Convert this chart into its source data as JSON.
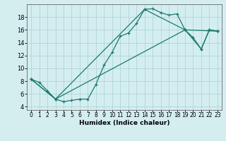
{
  "xlabel": "Humidex (Indice chaleur)",
  "bg_color": "#d4eef0",
  "line_color": "#1a7a6e",
  "grid_color": "#afd4d8",
  "xlim": [
    -0.5,
    23.5
  ],
  "ylim": [
    3.5,
    20.0
  ],
  "yticks": [
    4,
    6,
    8,
    10,
    12,
    14,
    16,
    18
  ],
  "xticks": [
    0,
    1,
    2,
    3,
    4,
    5,
    6,
    7,
    8,
    9,
    10,
    11,
    12,
    13,
    14,
    15,
    16,
    17,
    18,
    19,
    20,
    21,
    22,
    23
  ],
  "line1_x": [
    0,
    1,
    2,
    3,
    4,
    5,
    6,
    7,
    8,
    9,
    10,
    11,
    12,
    13,
    14,
    15,
    16,
    17,
    18,
    19,
    20,
    21,
    22,
    23
  ],
  "line1_y": [
    8.3,
    7.8,
    6.5,
    5.2,
    4.8,
    5.0,
    5.2,
    5.2,
    7.5,
    10.5,
    12.5,
    15.0,
    15.5,
    17.0,
    19.2,
    19.3,
    18.7,
    18.3,
    18.5,
    16.0,
    14.8,
    13.0,
    16.0,
    15.8
  ],
  "line2_x": [
    0,
    3,
    19,
    23
  ],
  "line2_y": [
    8.3,
    5.2,
    16.0,
    15.8
  ],
  "line3_x": [
    0,
    3,
    14,
    19,
    21,
    22,
    23
  ],
  "line3_y": [
    8.3,
    5.2,
    19.2,
    16.0,
    13.0,
    16.0,
    15.8
  ]
}
